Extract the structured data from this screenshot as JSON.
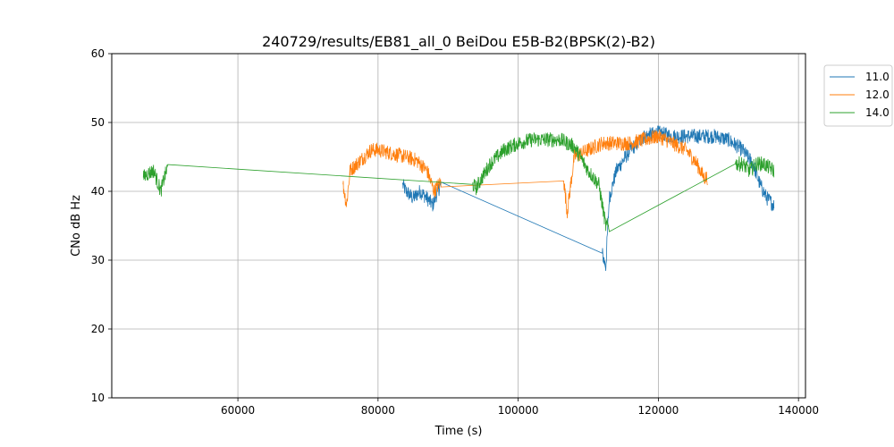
{
  "chart_data": {
    "type": "line",
    "title": "240729/results/EB81_all_0 BeiDou E5B-B2(BPSK(2)-B2)",
    "xlabel": "Time (s)",
    "ylabel": "CNo dB Hz",
    "xlim": [
      42000,
      141000
    ],
    "ylim": [
      10,
      60
    ],
    "xticks": [
      60000,
      80000,
      100000,
      120000,
      140000
    ],
    "yticks": [
      10,
      20,
      30,
      40,
      50,
      60
    ],
    "grid": true,
    "legend_position": "upper-right-outside",
    "series": [
      {
        "name": "11.0",
        "color": "#1f77b4",
        "x": [
          83500,
          84000,
          85000,
          86000,
          87000,
          87800,
          88500,
          89000,
          112000,
          112500,
          113000,
          114000,
          116000,
          118000,
          120000,
          122000,
          124000,
          126000,
          128000,
          130000,
          132000,
          133500,
          134500,
          135500,
          136500
        ],
        "y": [
          41,
          40,
          39,
          40,
          39,
          38,
          40,
          41,
          31,
          29,
          39,
          43,
          46,
          48,
          48.5,
          48,
          48,
          48,
          48,
          47.5,
          46,
          44,
          41,
          39,
          38
        ]
      },
      {
        "name": "12.0",
        "color": "#ff7f0e",
        "x": [
          75000,
          75500,
          76000,
          77000,
          78000,
          79000,
          80000,
          82000,
          84000,
          85500,
          87000,
          88000,
          89000,
          106500,
          107000,
          108000,
          110000,
          112000,
          114000,
          116000,
          118000,
          120000,
          122000,
          124000,
          125500,
          126500,
          127000
        ],
        "y": [
          41,
          38,
          43,
          44,
          45,
          46,
          46,
          45.5,
          45,
          44.5,
          43,
          40,
          41.5,
          41.5,
          37,
          45,
          46,
          47,
          47,
          47,
          47.5,
          48,
          47,
          46,
          44,
          42,
          42
        ]
      },
      {
        "name": "14.0",
        "color": "#2ca02c",
        "x": [
          46500,
          47000,
          48000,
          49000,
          49500,
          50000,
          93500,
          94000,
          96000,
          98000,
          100000,
          102000,
          104000,
          106000,
          108000,
          110000,
          111500,
          112500,
          113000,
          131000,
          132000,
          133000,
          134000,
          135000,
          136500
        ],
        "y": [
          42,
          42.5,
          43,
          40,
          42,
          43.5,
          41,
          40.5,
          44,
          46,
          47,
          47.5,
          47.5,
          47.5,
          46.5,
          43,
          41,
          35,
          35,
          44,
          44,
          43,
          44,
          44,
          43
        ]
      }
    ]
  }
}
